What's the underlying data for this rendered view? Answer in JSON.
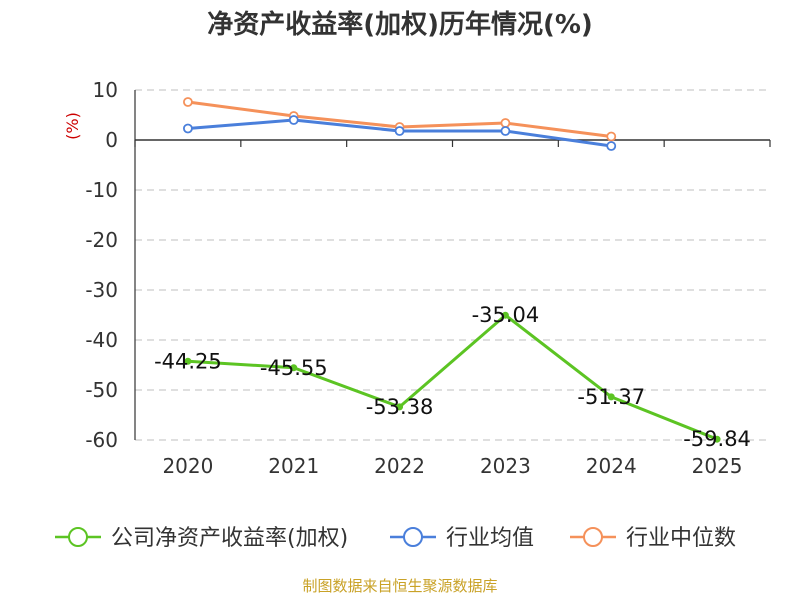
{
  "chart_data": {
    "type": "line",
    "title": "净资产收益率(加权)历年情况(%)",
    "ylabel": "(%)",
    "xlabel": "",
    "categories": [
      "2020",
      "2021",
      "2022",
      "2023",
      "2024",
      "2025"
    ],
    "ylim": [
      -60,
      10
    ],
    "yticks": [
      10,
      0,
      -10,
      -20,
      -30,
      -40,
      -50,
      -60
    ],
    "ytick_labels": [
      "10",
      "0",
      "-10",
      "-20",
      "-30",
      "-40",
      "-50",
      "-60"
    ],
    "grid": true,
    "legend_position": "bottom",
    "series": [
      {
        "name": "公司净资产收益率(加权)",
        "color": "#5cc423",
        "values": [
          -44.25,
          -45.55,
          -53.38,
          -35.04,
          -51.37,
          -59.84
        ],
        "labels": [
          "-44.25",
          "-45.55",
          "-53.38",
          "-35.04",
          "-51.37",
          "-59.84"
        ]
      },
      {
        "name": "行业均值",
        "color": "#4a7fdb",
        "values": [
          2.3,
          4.0,
          1.8,
          1.8,
          -1.2,
          null
        ]
      },
      {
        "name": "行业中位数",
        "color": "#f5915a",
        "values": [
          7.6,
          4.8,
          2.6,
          3.4,
          0.7,
          null
        ]
      }
    ]
  },
  "source": "制图数据来自恒生聚源数据库"
}
